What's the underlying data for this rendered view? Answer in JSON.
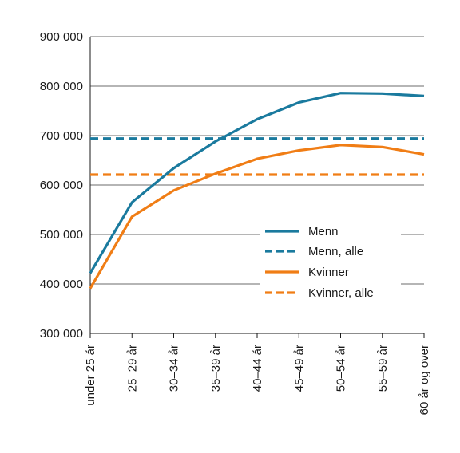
{
  "chart_data": {
    "type": "line",
    "categories": [
      "under 25 år",
      "25–29 år",
      "30–34 år",
      "35–39 år",
      "40–44 år",
      "45–49 år",
      "50–54 år",
      "55–59 år",
      "60 år og over"
    ],
    "series": [
      {
        "name": "Menn",
        "values": [
          422000,
          565000,
          634000,
          688000,
          733000,
          767000,
          786000,
          785000,
          780000
        ],
        "color": "#1a7a9e",
        "style": "solid"
      },
      {
        "name": "Menn, alle",
        "values": [
          694000,
          694000,
          694000,
          694000,
          694000,
          694000,
          694000,
          694000,
          694000
        ],
        "color": "#1a7a9e",
        "style": "dashed"
      },
      {
        "name": "Kvinner",
        "values": [
          391000,
          536000,
          589000,
          623000,
          653000,
          670000,
          681000,
          677000,
          662000
        ],
        "color": "#f07d15",
        "style": "solid"
      },
      {
        "name": "Kvinner, alle",
        "values": [
          621000,
          621000,
          621000,
          621000,
          621000,
          621000,
          621000,
          621000,
          621000
        ],
        "color": "#f07d15",
        "style": "dashed"
      }
    ],
    "y_ticks": [
      "300 000",
      "400 000",
      "500 000",
      "600 000",
      "700 000",
      "800 000",
      "900 000"
    ],
    "y_tick_values": [
      300000,
      400000,
      500000,
      600000,
      700000,
      800000,
      900000
    ],
    "ylim": [
      300000,
      900000
    ],
    "title": "",
    "xlabel": "",
    "ylabel": "",
    "grid": true,
    "legend_position": "right"
  }
}
